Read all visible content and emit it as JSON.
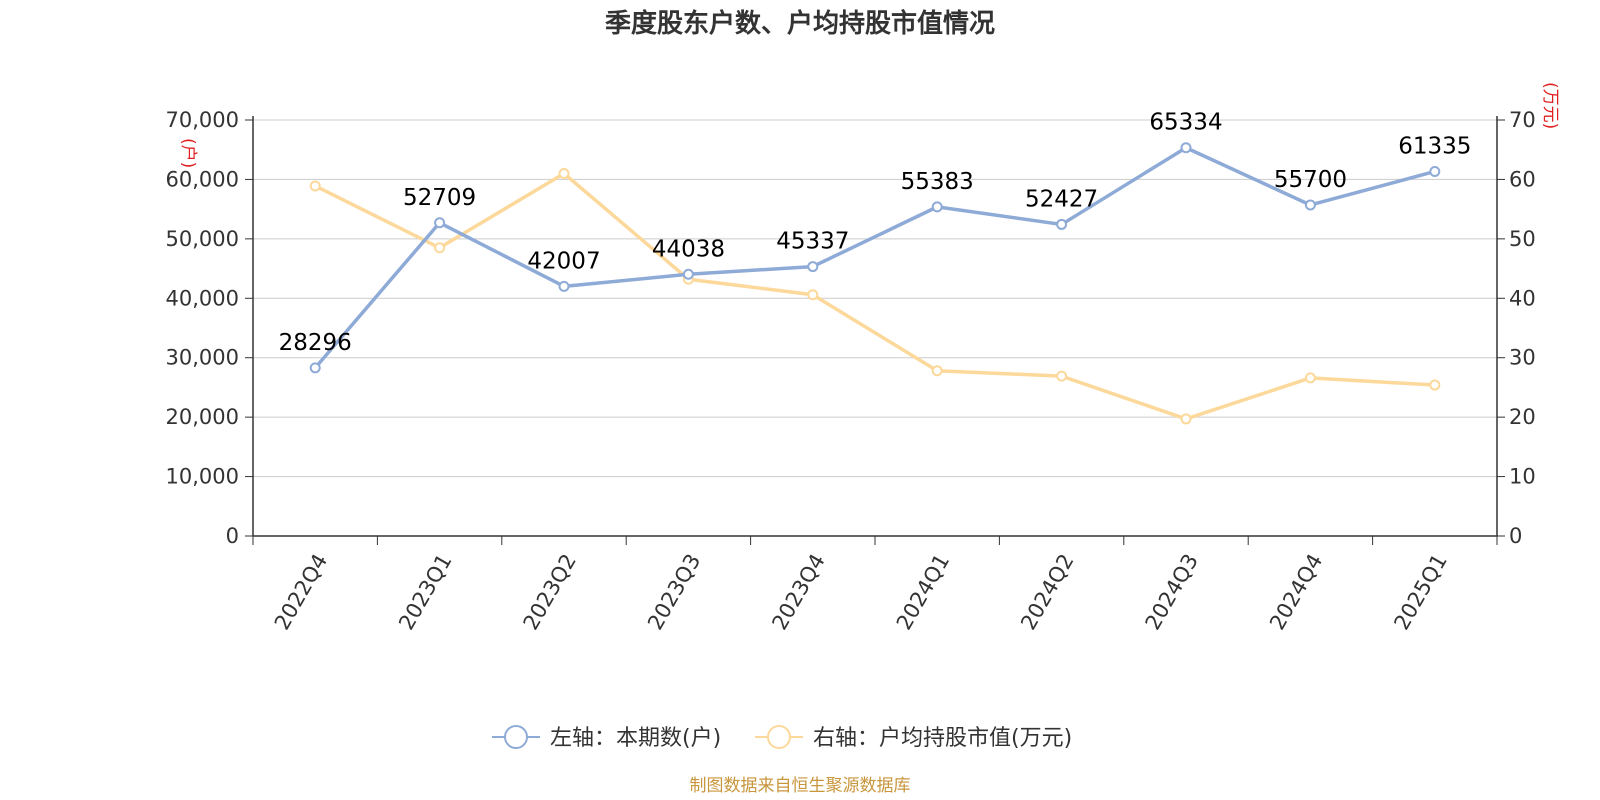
{
  "chart_data": {
    "type": "line",
    "title": "季度股东户数、户均持股市值情况",
    "categories": [
      "2022Q4",
      "2023Q1",
      "2023Q2",
      "2023Q3",
      "2023Q4",
      "2024Q1",
      "2024Q2",
      "2024Q3",
      "2024Q4",
      "2025Q1"
    ],
    "left_axis": {
      "unit": "(户)",
      "ylim": [
        0,
        70000
      ],
      "ticks": [
        0,
        10000,
        20000,
        30000,
        40000,
        50000,
        60000,
        70000
      ],
      "tick_labels": [
        "0",
        "10,000",
        "20,000",
        "30,000",
        "40,000",
        "50,000",
        "60,000",
        "70,000"
      ]
    },
    "right_axis": {
      "unit": "(万元)",
      "ylim": [
        0,
        70
      ],
      "ticks": [
        0,
        10,
        20,
        30,
        40,
        50,
        60,
        70
      ],
      "tick_labels": [
        "0",
        "10",
        "20",
        "30",
        "40",
        "50",
        "60",
        "70"
      ]
    },
    "grid": true,
    "legend_position": "bottom",
    "series": [
      {
        "name": "左轴：本期数(户)",
        "axis": "left",
        "color": "#8eaad6",
        "values": [
          28296,
          52709,
          42007,
          44038,
          45337,
          55383,
          52427,
          65334,
          55700,
          61335
        ],
        "labels": [
          "28296",
          "52709",
          "42007",
          "44038",
          "45337",
          "55383",
          "52427",
          "65334",
          "55700",
          "61335"
        ]
      },
      {
        "name": "右轴：户均持股市值(万元)",
        "axis": "right",
        "color": "#fcd89a",
        "values": [
          58.9,
          48.5,
          61.0,
          43.2,
          40.6,
          27.8,
          26.9,
          19.7,
          26.6,
          25.4
        ]
      }
    ]
  },
  "footer": {
    "source": "制图数据来自恒生聚源数据库"
  }
}
